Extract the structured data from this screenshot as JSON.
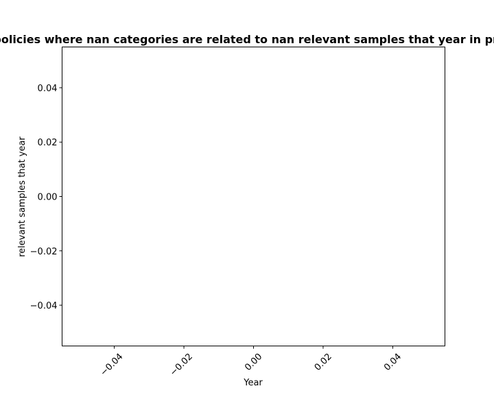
{
  "chart_data": {
    "type": "line",
    "title": "Number of privacy policies where nan categories are related to nan relevant samples that year in privacy policies by year",
    "xlabel": "Year",
    "ylabel": "relevant samples that year",
    "xlim": [
      -0.055,
      0.055
    ],
    "ylim": [
      -0.055,
      0.055
    ],
    "xticks": [
      -0.04,
      -0.02,
      0.0,
      0.02,
      0.04
    ],
    "xtick_labels": [
      "−0.04",
      "−0.02",
      "0.00",
      "0.02",
      "0.04"
    ],
    "yticks": [
      0.04,
      0.02,
      0.0,
      -0.02,
      -0.04
    ],
    "ytick_labels": [
      "0.04",
      "0.02",
      "0.00",
      "−0.02",
      "−0.04"
    ],
    "series": [],
    "grid": false,
    "legend": false
  }
}
